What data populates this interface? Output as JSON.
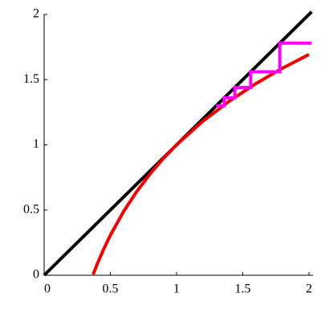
{
  "chart_data": {
    "type": "line",
    "xlim": [
      0,
      2
    ],
    "ylim": [
      0,
      2
    ],
    "xticks": [
      0,
      0.5,
      1,
      1.5,
      2
    ],
    "yticks": [
      0,
      0.5,
      1,
      1.5,
      2
    ],
    "series": [
      {
        "color": "#000000",
        "x": [
          0,
          2.02
        ],
        "values": [
          0,
          2.02
        ]
      },
      {
        "color": "#ee0000",
        "x": [
          0.37,
          0.4,
          0.45,
          0.5,
          0.6,
          0.7,
          0.8,
          0.9,
          1,
          1.2,
          1.4,
          1.6,
          1.8,
          2
        ],
        "values": [
          0.006,
          0.084,
          0.201,
          0.307,
          0.489,
          0.643,
          0.777,
          0.895,
          1,
          1.182,
          1.336,
          1.47,
          1.588,
          1.693
        ]
      },
      {
        "color": "#ff00ff",
        "x": [
          2.02,
          1.78,
          1.78,
          1.56,
          1.56,
          1.44,
          1.44,
          1.36,
          1.36,
          1.3
        ],
        "values": [
          1.78,
          1.78,
          1.56,
          1.56,
          1.44,
          1.44,
          1.36,
          1.36,
          1.3,
          1.3
        ]
      }
    ]
  }
}
